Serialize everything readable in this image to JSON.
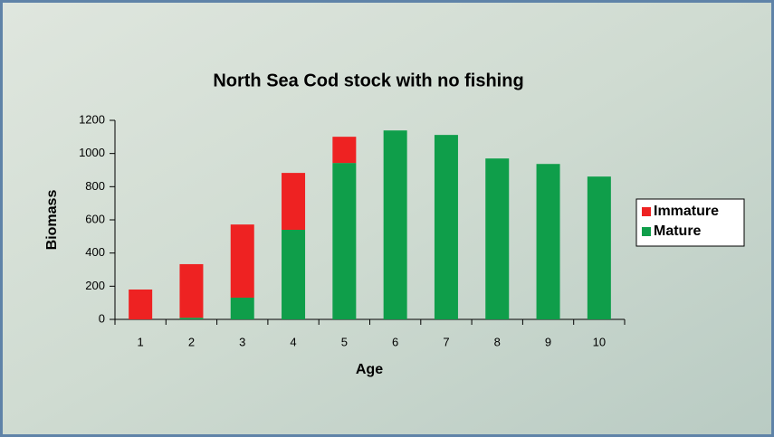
{
  "chart_data": {
    "type": "stacked-bar",
    "title": "North Sea Cod stock with no fishing",
    "x_label": "Age",
    "y_label": "Biomass",
    "categories": [
      "1",
      "2",
      "3",
      "4",
      "5",
      "6",
      "7",
      "8",
      "9",
      "10"
    ],
    "series": [
      {
        "name": "Immature",
        "color": "#ee2222",
        "values": [
          180,
          323,
          441,
          343,
          158,
          0,
          0,
          0,
          0,
          0
        ]
      },
      {
        "name": "Mature",
        "color": "#0f9e4a",
        "values": [
          0,
          10,
          131,
          540,
          943,
          1139,
          1112,
          970,
          937,
          861
        ]
      }
    ],
    "ylim": [
      0,
      1200
    ],
    "yticks": [
      0,
      200,
      400,
      600,
      800,
      1000,
      1200
    ],
    "legend": "right"
  }
}
